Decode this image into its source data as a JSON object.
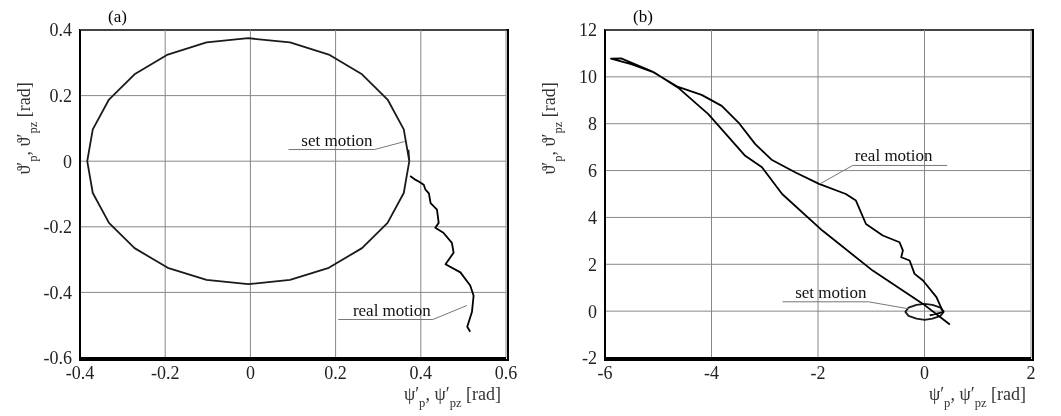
{
  "chart_data": [
    {
      "type": "line",
      "title": "(a)",
      "xlabel": "ψ′$_{p}$, ψ′$_{pz}$ [rad]",
      "ylabel": "ϑ′$_{p}$, ϑ′$_{pz}$ [rad]",
      "xlim": [
        -0.4,
        0.6
      ],
      "xticks": [
        -0.4,
        -0.2,
        0,
        0.2,
        0.4,
        0.6
      ],
      "ylim": [
        -0.6,
        0.4
      ],
      "yticks": [
        -0.6,
        -0.4,
        -0.2,
        0,
        0.2,
        0.4
      ],
      "grid": true,
      "series": [
        {
          "name": "set motion",
          "color": "#1a1a1a",
          "x": [
            0.373,
            0.36,
            0.322,
            0.262,
            0.184,
            0.093,
            -0.005,
            -0.103,
            -0.194,
            -0.272,
            -0.332,
            -0.37,
            -0.383,
            -0.37,
            -0.332,
            -0.272,
            -0.194,
            -0.103,
            -0.005,
            0.093,
            0.184,
            0.262,
            0.322,
            0.36,
            0.373,
            0.371
          ],
          "values": [
            0,
            0.097,
            0.188,
            0.265,
            0.325,
            0.362,
            0.375,
            0.362,
            0.325,
            0.265,
            0.188,
            0.097,
            0,
            -0.097,
            -0.188,
            -0.265,
            -0.325,
            -0.362,
            -0.375,
            -0.362,
            -0.325,
            -0.265,
            -0.188,
            -0.097,
            0,
            0.035
          ]
        },
        {
          "name": "real motion",
          "color": "#000000",
          "x": [
            0.375,
            0.388,
            0.395,
            0.407,
            0.411,
            0.419,
            0.423,
            0.438,
            0.442,
            0.434,
            0.453,
            0.473,
            0.477,
            0.458,
            0.493,
            0.516,
            0.524,
            0.52,
            0.509,
            0.516
          ],
          "values": [
            -0.045,
            -0.057,
            -0.062,
            -0.072,
            -0.087,
            -0.098,
            -0.128,
            -0.148,
            -0.188,
            -0.203,
            -0.218,
            -0.249,
            -0.279,
            -0.314,
            -0.339,
            -0.379,
            -0.41,
            -0.46,
            -0.505,
            -0.52
          ]
        }
      ]
    },
    {
      "type": "line",
      "title": "(b)",
      "xlabel": "ψ′$_{p}$, ψ′$_{pz}$ [rad]",
      "ylabel": "ϑ′$_{p}$, ϑ′$_{pz}$ [rad]",
      "xlim": [
        -6,
        2
      ],
      "xticks": [
        -6,
        -4,
        -2,
        0,
        2
      ],
      "ylim": [
        -2,
        12
      ],
      "yticks": [
        -2,
        0,
        2,
        4,
        6,
        8,
        10,
        12
      ],
      "grid": true,
      "series": [
        {
          "name": "set motion",
          "color": "#1a1a1a",
          "x": [
            0.36,
            0.3,
            0.15,
            0,
            -0.15,
            -0.3,
            -0.36,
            -0.3,
            -0.15,
            0,
            0.15,
            0.3,
            0.36,
            0.35
          ],
          "values": [
            -0.03,
            0.15,
            0.27,
            0.31,
            0.27,
            0.15,
            -0.03,
            -0.2,
            -0.32,
            -0.37,
            -0.32,
            -0.2,
            -0.03,
            0.05
          ]
        },
        {
          "name": "real motion",
          "color": "#000000",
          "x": [
            0.476,
            -0.028,
            -0.973,
            -1.918,
            -2.674,
            -3.052,
            -3.367,
            -4.06,
            -4.627,
            -5.068,
            -5.509,
            -5.887,
            -5.698,
            -5.131,
            -4.627,
            -4.186,
            -3.808,
            -3.493,
            -3.178,
            -2.863,
            -2.422,
            -1.981,
            -1.477,
            -1.288,
            -1.099,
            -0.784,
            -0.469,
            -0.406,
            -0.437,
            -0.28,
            -0.186,
            -0.028,
            0.224,
            0.35,
            0.098
          ],
          "values": [
            -0.57,
            0.31,
            1.73,
            3.44,
            5.0,
            6.14,
            6.63,
            8.41,
            9.54,
            10.18,
            10.54,
            10.78,
            10.79,
            10.25,
            9.57,
            9.23,
            8.76,
            8.05,
            7.13,
            6.45,
            5.92,
            5.43,
            5.0,
            4.72,
            3.72,
            3.23,
            2.94,
            2.59,
            2.3,
            2.16,
            1.59,
            1.31,
            0.6,
            -0.04,
            -0.18
          ]
        }
      ]
    }
  ]
}
